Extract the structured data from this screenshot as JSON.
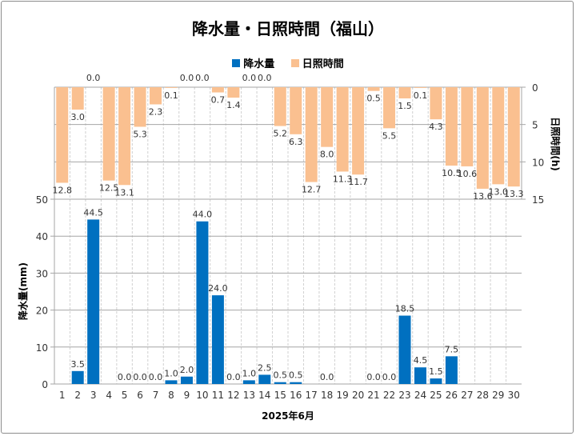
{
  "chart_data": {
    "type": "bar",
    "title": "降水量・日照時間（福山）",
    "xlabel": "2025年6月",
    "categories": [
      "1",
      "2",
      "3",
      "4",
      "5",
      "6",
      "7",
      "8",
      "9",
      "10",
      "11",
      "12",
      "13",
      "14",
      "15",
      "16",
      "17",
      "18",
      "19",
      "20",
      "21",
      "22",
      "23",
      "24",
      "25",
      "26",
      "27",
      "28",
      "29",
      "30"
    ],
    "series": [
      {
        "name": "降水量",
        "axis": "left",
        "color": "#0070c0",
        "values": [
          null,
          3.5,
          44.5,
          null,
          0.0,
          0.0,
          0.0,
          1.0,
          2.0,
          44.0,
          24.0,
          0.0,
          1.0,
          2.5,
          0.5,
          0.5,
          null,
          0.0,
          null,
          null,
          0.0,
          0.0,
          18.5,
          4.5,
          1.5,
          7.5,
          null,
          null,
          null,
          null
        ]
      },
      {
        "name": "日照時間",
        "axis": "right",
        "color": "#fac090",
        "values": [
          12.8,
          3.0,
          0.0,
          12.5,
          13.1,
          5.3,
          2.3,
          0.1,
          0.0,
          0.0,
          0.7,
          1.4,
          0.0,
          0.0,
          5.2,
          6.3,
          12.7,
          8.0,
          11.3,
          11.7,
          0.5,
          5.5,
          1.5,
          0.1,
          4.3,
          10.5,
          10.6,
          13.6,
          13.0,
          13.3
        ]
      }
    ],
    "ylabel": "降水量(mm)",
    "ylim": [
      0,
      50
    ],
    "yticks": [
      "0",
      "10",
      "20",
      "30",
      "40",
      "50"
    ],
    "y2label": "日照時間(h)",
    "y2lim": [
      0,
      15
    ],
    "y2_reversed": true,
    "y2ticks": [
      "0",
      "5",
      "10",
      "15"
    ],
    "grid": true,
    "legend_position": "top"
  }
}
